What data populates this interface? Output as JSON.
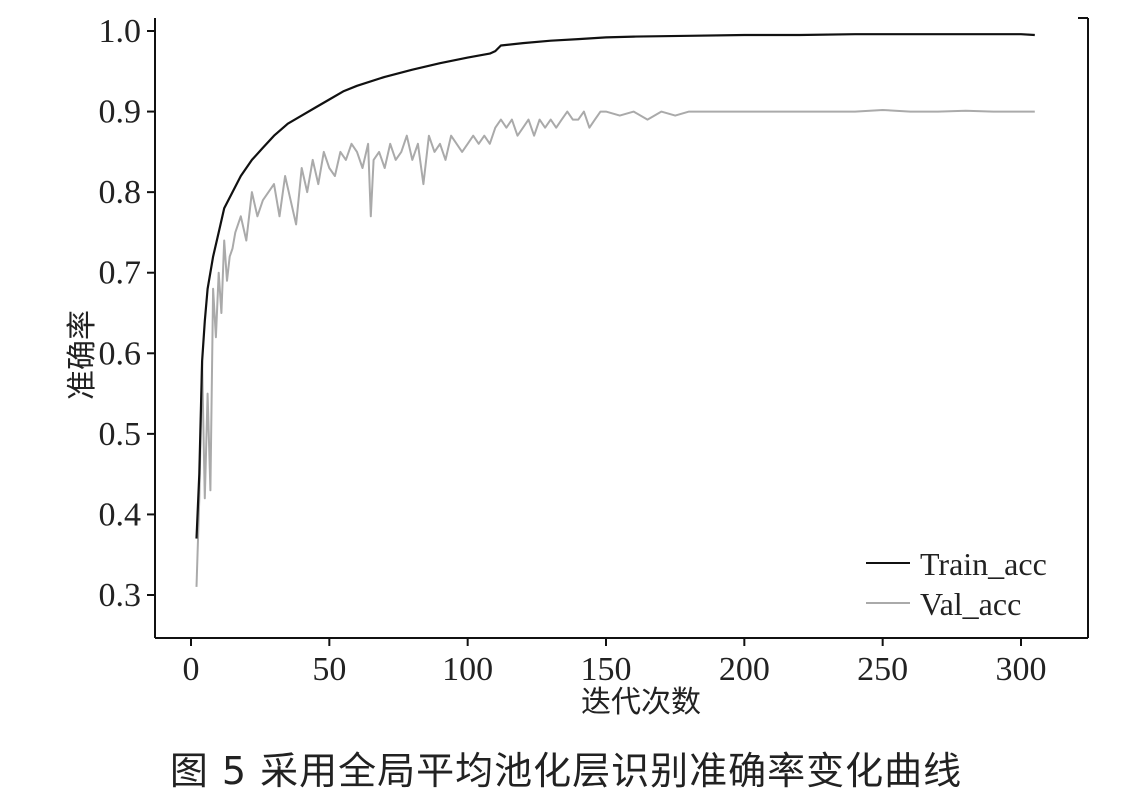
{
  "caption": "图 5   采用全局平均池化层识别准确率变化曲线",
  "chart_data": {
    "type": "line",
    "title": "",
    "xlabel": "迭代次数",
    "ylabel": "准确率",
    "xlim": [
      -5,
      315
    ],
    "ylim": [
      0.25,
      1.02
    ],
    "xticks": [
      0,
      50,
      100,
      150,
      200,
      250,
      300
    ],
    "xtick_labels": [
      "0",
      "50",
      "100",
      "150",
      "200",
      "250",
      "300"
    ],
    "yticks": [
      0.3,
      0.4,
      0.5,
      0.6,
      0.7,
      0.8,
      0.9,
      1.0
    ],
    "ytick_labels": [
      "0.3",
      "0.4",
      "0.5",
      "0.6",
      "0.7",
      "0.8",
      "0.9",
      "1.0"
    ],
    "grid": false,
    "legend_position": "bottom-right",
    "series": [
      {
        "name": "Train_acc",
        "color": "#111111",
        "x": [
          2,
          3,
          4,
          5,
          6,
          8,
          10,
          12,
          15,
          18,
          22,
          26,
          30,
          35,
          40,
          45,
          50,
          55,
          60,
          70,
          80,
          90,
          100,
          108,
          110,
          112,
          120,
          130,
          140,
          150,
          160,
          180,
          200,
          220,
          240,
          260,
          280,
          300,
          305
        ],
        "values": [
          0.37,
          0.45,
          0.59,
          0.64,
          0.68,
          0.72,
          0.75,
          0.78,
          0.8,
          0.82,
          0.84,
          0.855,
          0.87,
          0.885,
          0.895,
          0.905,
          0.915,
          0.925,
          0.932,
          0.943,
          0.952,
          0.96,
          0.967,
          0.972,
          0.975,
          0.982,
          0.985,
          0.988,
          0.99,
          0.992,
          0.993,
          0.994,
          0.995,
          0.995,
          0.996,
          0.996,
          0.996,
          0.996,
          0.995
        ]
      },
      {
        "name": "Val_acc",
        "color": "#aaaaaa",
        "x": [
          2,
          3,
          4,
          5,
          6,
          7,
          8,
          9,
          10,
          11,
          12,
          13,
          14,
          15,
          16,
          18,
          20,
          22,
          24,
          26,
          28,
          30,
          32,
          34,
          36,
          38,
          40,
          42,
          44,
          46,
          48,
          50,
          52,
          54,
          56,
          58,
          60,
          62,
          64,
          65,
          66,
          68,
          70,
          72,
          74,
          76,
          78,
          80,
          82,
          84,
          86,
          88,
          90,
          92,
          94,
          96,
          98,
          100,
          102,
          104,
          106,
          108,
          110,
          112,
          114,
          116,
          118,
          120,
          122,
          124,
          126,
          128,
          130,
          132,
          134,
          136,
          138,
          140,
          142,
          144,
          146,
          148,
          150,
          155,
          160,
          165,
          170,
          175,
          180,
          190,
          200,
          210,
          220,
          230,
          240,
          250,
          260,
          270,
          280,
          290,
          300,
          305
        ],
        "values": [
          0.31,
          0.42,
          0.59,
          0.42,
          0.55,
          0.43,
          0.68,
          0.62,
          0.7,
          0.65,
          0.74,
          0.69,
          0.72,
          0.73,
          0.75,
          0.77,
          0.74,
          0.8,
          0.77,
          0.79,
          0.8,
          0.81,
          0.77,
          0.82,
          0.79,
          0.76,
          0.83,
          0.8,
          0.84,
          0.81,
          0.85,
          0.83,
          0.82,
          0.85,
          0.84,
          0.86,
          0.85,
          0.83,
          0.86,
          0.77,
          0.84,
          0.85,
          0.83,
          0.86,
          0.84,
          0.85,
          0.87,
          0.84,
          0.86,
          0.81,
          0.87,
          0.85,
          0.86,
          0.84,
          0.87,
          0.86,
          0.85,
          0.86,
          0.87,
          0.86,
          0.87,
          0.86,
          0.88,
          0.89,
          0.88,
          0.89,
          0.87,
          0.88,
          0.89,
          0.87,
          0.89,
          0.88,
          0.89,
          0.88,
          0.89,
          0.9,
          0.89,
          0.89,
          0.9,
          0.88,
          0.89,
          0.9,
          0.9,
          0.895,
          0.9,
          0.89,
          0.9,
          0.895,
          0.9,
          0.9,
          0.9,
          0.9,
          0.9,
          0.9,
          0.9,
          0.902,
          0.9,
          0.9,
          0.901,
          0.9,
          0.9,
          0.9
        ]
      }
    ]
  }
}
